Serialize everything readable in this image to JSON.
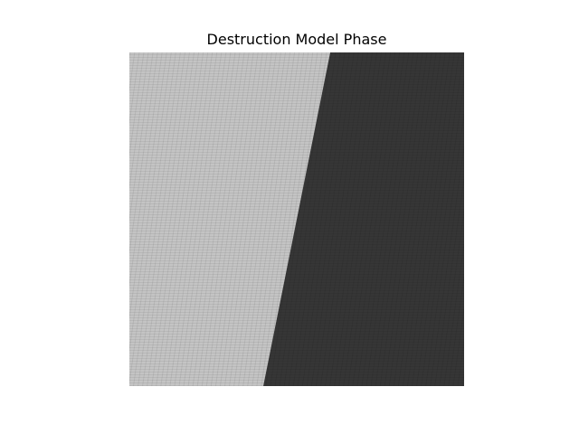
{
  "chart_data": {
    "type": "heatmap",
    "title": "Destruction Model Phase",
    "xlabel": "",
    "ylabel": "",
    "axes_visible": false,
    "grid": false,
    "colormap": "gray",
    "regions": [
      {
        "label": "",
        "shade": "light",
        "color": "#c4c4c4"
      },
      {
        "label": "",
        "shade": "dark",
        "color": "#363636"
      }
    ],
    "boundary": {
      "shape": "straight line",
      "top_fraction_from_left": 0.6,
      "bottom_fraction_from_left": 0.4
    },
    "texture": "fine streaked noise"
  }
}
